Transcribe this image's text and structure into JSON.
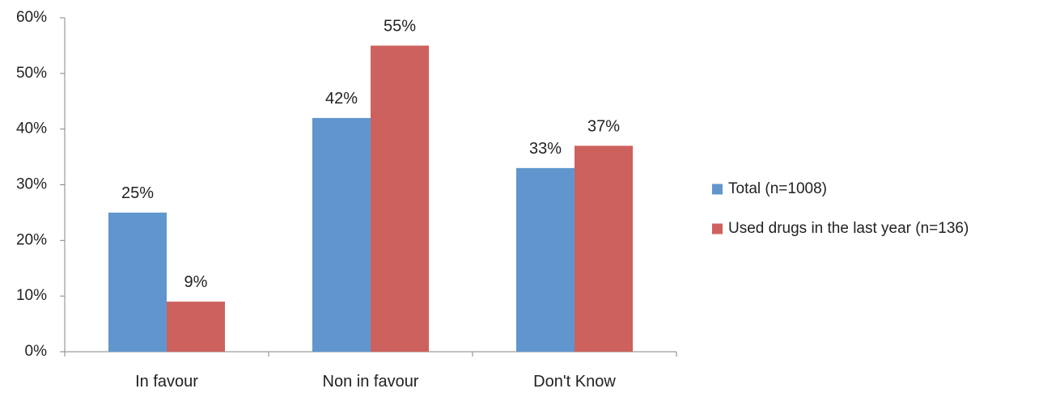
{
  "chart_data": {
    "type": "bar",
    "categories": [
      "In favour",
      "Non in favour",
      "Don't Know"
    ],
    "series": [
      {
        "name": "Total (n=1008)",
        "values": [
          25,
          42,
          33
        ],
        "labels": [
          "25%",
          "42%",
          "33%"
        ],
        "color": "#6096cd"
      },
      {
        "name": "Used drugs in the last year (n=136)",
        "values": [
          9,
          55,
          37
        ],
        "labels": [
          "9%",
          "55%",
          "37%"
        ],
        "color": "#cd615e"
      }
    ],
    "y_ticks": [
      0,
      10,
      20,
      30,
      40,
      50,
      60
    ],
    "y_tick_labels": [
      "0%",
      "10%",
      "20%",
      "30%",
      "40%",
      "50%",
      "60%"
    ],
    "ylim": [
      0,
      60
    ],
    "grid": false,
    "legend_position": "right"
  }
}
